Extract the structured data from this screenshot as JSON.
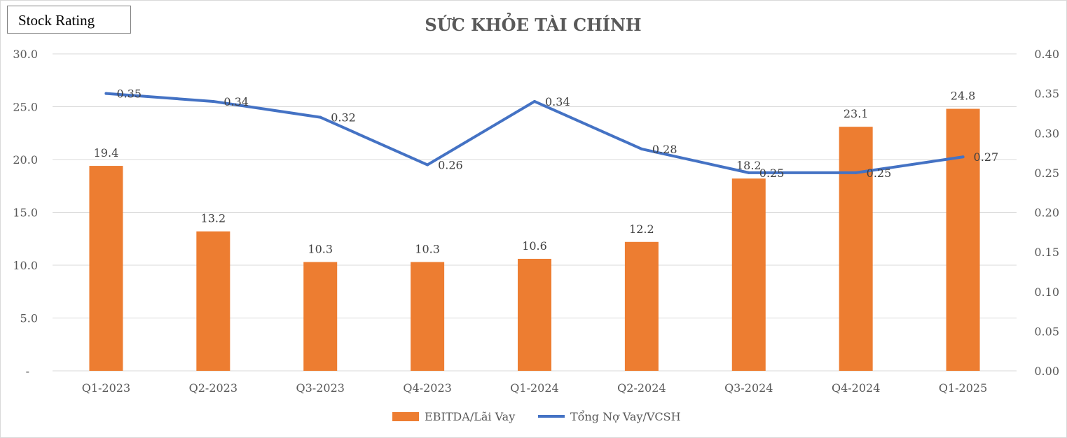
{
  "badge": {
    "label": "Stock Rating"
  },
  "colors": {
    "bar": "#ed7d31",
    "line": "#4472c4",
    "grid": "#d9d9d9",
    "text": "#595959"
  },
  "chart_data": {
    "type": "bar",
    "title": "SỨC KHỎE TÀI CHÍNH",
    "categories": [
      "Q1-2023",
      "Q2-2023",
      "Q3-2023",
      "Q4-2023",
      "Q1-2024",
      "Q2-2024",
      "Q3-2024",
      "Q4-2024",
      "Q1-2025"
    ],
    "series": [
      {
        "name": "EBITDA/Lãi Vay",
        "type": "bar",
        "axis": "left",
        "values": [
          19.4,
          13.2,
          10.3,
          10.3,
          10.6,
          12.2,
          18.2,
          23.1,
          24.8
        ],
        "labels": [
          "19.4",
          "13.2",
          "10.3",
          "10.3",
          "10.6",
          "12.2",
          "18.2",
          "23.1",
          "24.8"
        ]
      },
      {
        "name": "Tổng Nợ Vay/VCSH",
        "type": "line",
        "axis": "right",
        "values": [
          0.35,
          0.34,
          0.32,
          0.26,
          0.34,
          0.28,
          0.25,
          0.25,
          0.27
        ],
        "labels": [
          "0.35",
          "0.34",
          "0.32",
          "0.26",
          "0.34",
          "0.28",
          "0.25",
          "0.25",
          "0.27"
        ]
      }
    ],
    "y_left": {
      "min": 0,
      "max": 30,
      "ticks": [
        "-",
        "5.0",
        "10.0",
        "15.0",
        "20.0",
        "25.0",
        "30.0"
      ]
    },
    "y_right": {
      "min": 0,
      "max": 0.4,
      "ticks": [
        "0.00",
        "0.05",
        "0.10",
        "0.15",
        "0.20",
        "0.25",
        "0.30",
        "0.35",
        "0.40"
      ]
    },
    "grid": true,
    "legend_position": "bottom-center"
  }
}
